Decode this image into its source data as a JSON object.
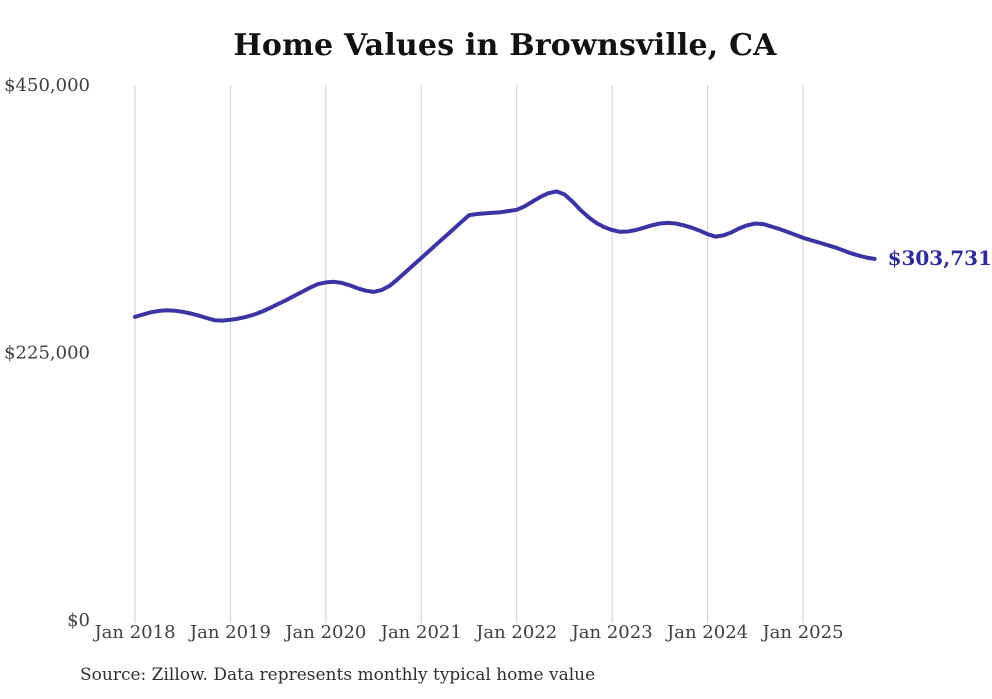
{
  "chart_data": {
    "type": "line",
    "title": "Home Values in Brownsville, CA",
    "source_note": "Source: Zillow. Data represents monthly typical home value",
    "end_label": "$303,731",
    "end_value": 303731,
    "x_ticks": [
      "Jan 2018",
      "Jan 2019",
      "Jan 2020",
      "Jan 2021",
      "Jan 2022",
      "Jan 2023",
      "Jan 2024",
      "Jan 2025"
    ],
    "y_ticks": [
      {
        "label": "$450,000",
        "value": 450000
      },
      {
        "label": "$225,000",
        "value": 225000
      },
      {
        "label": "$0",
        "value": 0
      }
    ],
    "ylim": [
      0,
      450000
    ],
    "grid": "vertical-only",
    "legend": "none",
    "series": [
      {
        "name": "Typical home value",
        "start_month": "2018-01",
        "end_month": "2025-10",
        "frequency": "monthly",
        "values": [
          255000,
          257000,
          258800,
          260000,
          260500,
          260200,
          259200,
          257800,
          256000,
          254000,
          252200,
          251800,
          252500,
          253500,
          255000,
          257000,
          259500,
          262500,
          265800,
          269000,
          272500,
          276000,
          279500,
          282500,
          284000,
          284500,
          283500,
          281500,
          279000,
          277000,
          276000,
          277500,
          281000,
          286500,
          292500,
          298500,
          304500,
          310500,
          316500,
          322500,
          328500,
          334500,
          340500,
          341500,
          342000,
          342500,
          343000,
          344000,
          345000,
          348000,
          352000,
          356000,
          359000,
          360500,
          358000,
          352000,
          345000,
          339000,
          334000,
          330500,
          328000,
          326500,
          326800,
          328000,
          330000,
          332000,
          333500,
          334000,
          333500,
          332000,
          330000,
          327500,
          324500,
          322500,
          323500,
          326000,
          329500,
          332000,
          333500,
          333000,
          331000,
          329000,
          326500,
          324000,
          321500,
          319500,
          317500,
          315500,
          313500,
          311000,
          308500,
          306500,
          304800,
          303731
        ]
      }
    ],
    "colors": {
      "line": "#3b35a4",
      "end_label": "#2e2c99",
      "grid": "#cfcfcf",
      "axis_text": "#3f3f3f",
      "title": "#121212",
      "source_text": "#2f2f2f"
    }
  }
}
